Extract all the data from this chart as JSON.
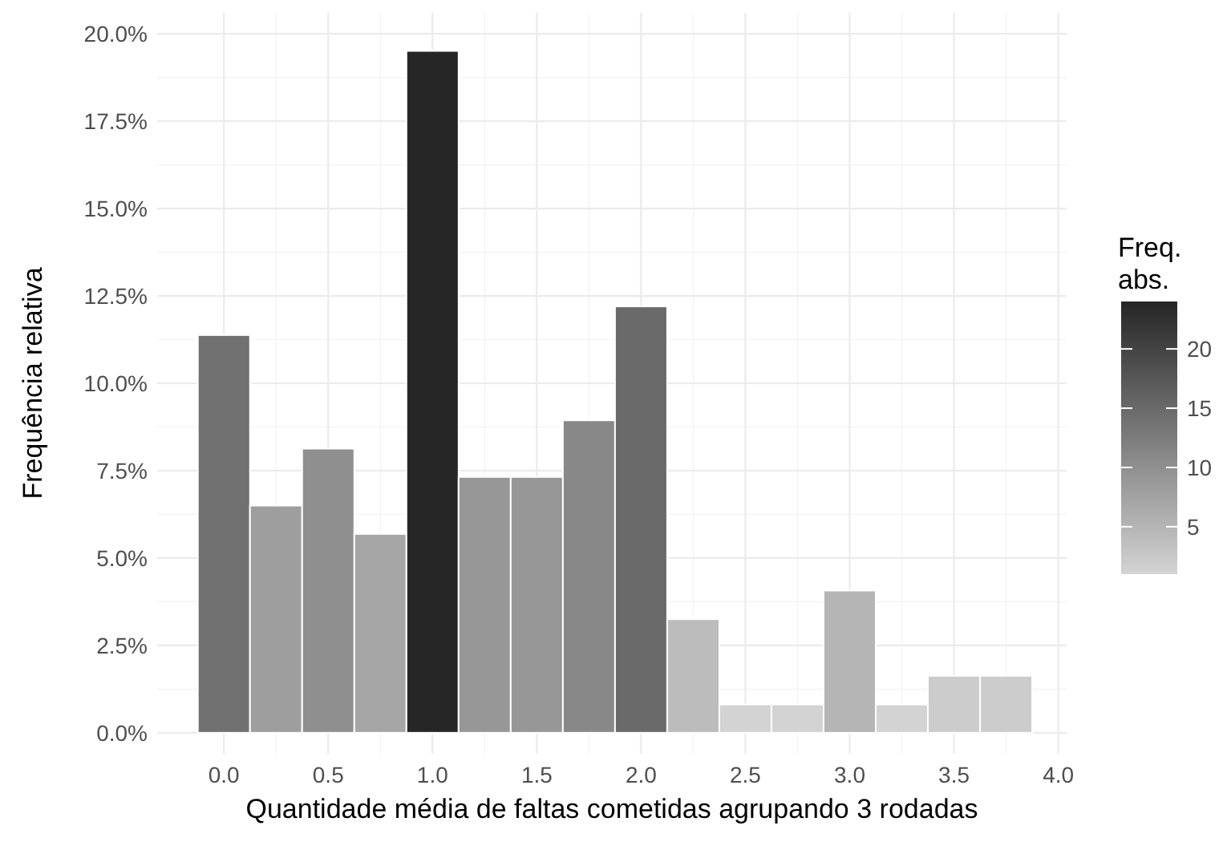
{
  "chart_data": {
    "type": "histogram",
    "xlabel": "Quantidade média de faltas cometidas agrupando 3 rodadas",
    "ylabel": "Frequência relativa",
    "clabel": "Freq. abs.",
    "bins": [
      -0.125,
      0.125,
      0.375,
      0.625,
      0.875,
      1.125,
      1.375,
      1.625,
      1.875,
      2.125,
      2.375,
      2.625,
      2.875,
      3.125,
      3.375,
      3.625,
      3.875
    ],
    "values": [
      11.38,
      6.5,
      8.13,
      5.69,
      19.51,
      7.32,
      7.32,
      8.94,
      12.2,
      3.25,
      0.81,
      0.81,
      4.07,
      0.81,
      1.63,
      1.63
    ],
    "cvalues": [
      14,
      8,
      10,
      7,
      24,
      9,
      9,
      11,
      15,
      4,
      1,
      1,
      5,
      1,
      2,
      2
    ],
    "colors": [
      "#717171",
      "#9e9e9e",
      "#8f8f8f",
      "#a6a6a6",
      "#262626",
      "#979797",
      "#979797",
      "#888888",
      "#6a6a6a",
      "#bcbcbc",
      "#d3d3d3",
      "#d3d3d3",
      "#b5b5b5",
      "#d3d3d3",
      "#cccccc",
      "#cccccc"
    ],
    "clim": [
      1,
      24
    ],
    "cticks": [
      5,
      10,
      15,
      20
    ],
    "xlim": [
      -0.32,
      4.04
    ],
    "xticks": [
      {
        "value": 0,
        "label": "0.0"
      },
      {
        "value": 0.5,
        "label": "0.5"
      },
      {
        "value": 1,
        "label": "1.0"
      },
      {
        "value": 1.5,
        "label": "1.5"
      },
      {
        "value": 2,
        "label": "2.0"
      },
      {
        "value": 2.5,
        "label": "2.5"
      },
      {
        "value": 3,
        "label": "3.0"
      },
      {
        "value": 3.5,
        "label": "3.5"
      },
      {
        "value": 4,
        "label": "4.0"
      }
    ],
    "ylim": [
      -0.6,
      20.6
    ],
    "yticks": [
      {
        "value": 0,
        "label": "0.0%"
      },
      {
        "value": 2.5,
        "label": "2.5%"
      },
      {
        "value": 5,
        "label": "5.0%"
      },
      {
        "value": 7.5,
        "label": "7.5%"
      },
      {
        "value": 10,
        "label": "10.0%"
      },
      {
        "value": 12.5,
        "label": "12.5%"
      },
      {
        "value": 15,
        "label": "15.0%"
      },
      {
        "value": 17.5,
        "label": "17.5%"
      },
      {
        "value": 20,
        "label": "20.0%"
      }
    ],
    "grid": true
  }
}
